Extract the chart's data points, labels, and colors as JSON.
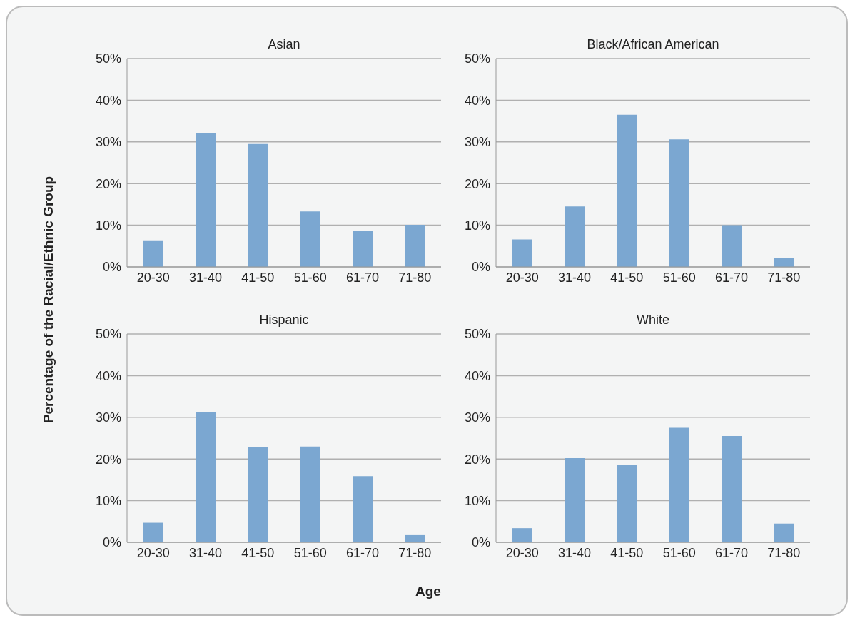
{
  "chart_data": [
    {
      "type": "bar",
      "title": "Asian",
      "ylabel": "Percentage of the Racial/Ethnic Group",
      "xlabel": "Age",
      "categories": [
        "20-30",
        "31-40",
        "41-50",
        "51-60",
        "61-70",
        "71-80"
      ],
      "values": [
        6.2,
        32.1,
        29.5,
        13.3,
        8.6,
        10.1
      ],
      "color": "#7ba7d1",
      "ylim": [
        0,
        50
      ],
      "yticks": [
        {
          "value": 0,
          "label": "0%"
        },
        {
          "value": 10,
          "label": "10%"
        },
        {
          "value": 20,
          "label": "20%"
        },
        {
          "value": 30,
          "label": "30%"
        },
        {
          "value": 40,
          "label": "40%"
        },
        {
          "value": 50,
          "label": "50%"
        }
      ],
      "grid": "y",
      "legend": false
    },
    {
      "type": "bar",
      "title": "Black/African American",
      "categories": [
        "20-30",
        "31-40",
        "41-50",
        "51-60",
        "61-70",
        "71-80"
      ],
      "values": [
        6.6,
        14.5,
        36.5,
        30.6,
        10.0,
        2.1
      ],
      "color": "#7ba7d1",
      "ylim": [
        0,
        50
      ],
      "yticks": [
        {
          "value": 0,
          "label": "0%"
        },
        {
          "value": 10,
          "label": "10%"
        },
        {
          "value": 20,
          "label": "20%"
        },
        {
          "value": 30,
          "label": "30%"
        },
        {
          "value": 40,
          "label": "40%"
        },
        {
          "value": 50,
          "label": "50%"
        }
      ],
      "grid": "y",
      "legend": false
    },
    {
      "type": "bar",
      "title": "Hispanic",
      "categories": [
        "20-30",
        "31-40",
        "41-50",
        "51-60",
        "61-70",
        "71-80"
      ],
      "values": [
        4.7,
        31.3,
        22.8,
        23.0,
        15.9,
        1.9
      ],
      "color": "#7ba7d1",
      "ylim": [
        0,
        50
      ],
      "yticks": [
        {
          "value": 0,
          "label": "0%"
        },
        {
          "value": 10,
          "label": "10%"
        },
        {
          "value": 20,
          "label": "20%"
        },
        {
          "value": 30,
          "label": "30%"
        },
        {
          "value": 40,
          "label": "40%"
        },
        {
          "value": 50,
          "label": "50%"
        }
      ],
      "grid": "y",
      "legend": false
    },
    {
      "type": "bar",
      "title": "White",
      "categories": [
        "20-30",
        "31-40",
        "41-50",
        "51-60",
        "61-70",
        "71-80"
      ],
      "values": [
        3.4,
        20.2,
        18.5,
        27.5,
        25.5,
        4.5
      ],
      "color": "#7ba7d1",
      "ylim": [
        0,
        50
      ],
      "yticks": [
        {
          "value": 0,
          "label": "0%"
        },
        {
          "value": 10,
          "label": "10%"
        },
        {
          "value": 20,
          "label": "20%"
        },
        {
          "value": 30,
          "label": "30%"
        },
        {
          "value": 40,
          "label": "40%"
        },
        {
          "value": 50,
          "label": "50%"
        }
      ],
      "grid": "y",
      "legend": false
    }
  ]
}
